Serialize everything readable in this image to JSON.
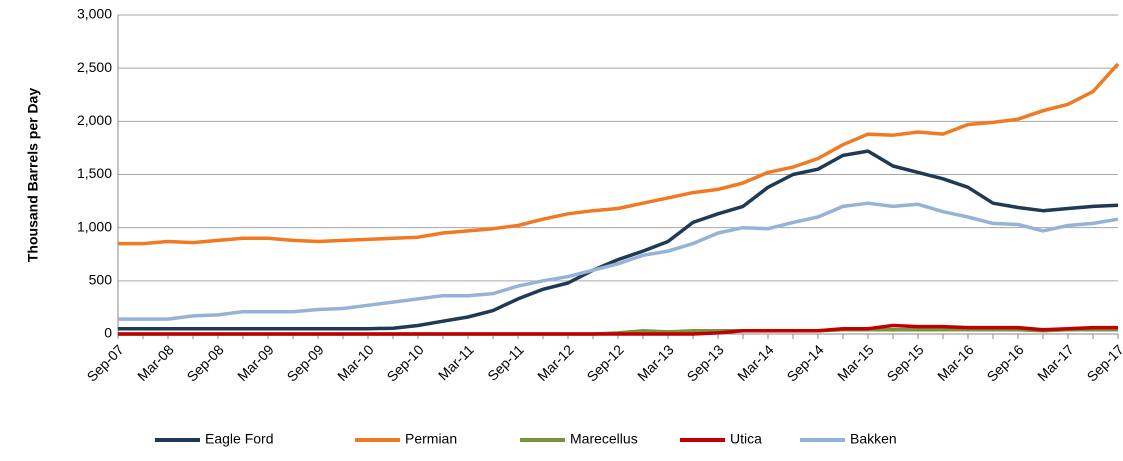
{
  "chart_data": {
    "type": "line",
    "y_label": "Thousand Barrels per Day",
    "categories": [
      "Sep-07",
      null,
      "Mar-08",
      null,
      "Sep-08",
      null,
      "Mar-09",
      null,
      "Sep-09",
      null,
      "Mar-10",
      null,
      "Sep-10",
      null,
      "Mar-11",
      null,
      "Sep-11",
      null,
      "Mar-12",
      null,
      "Sep-12",
      null,
      "Mar-13",
      null,
      "Sep-13",
      null,
      "Mar-14",
      null,
      "Sep-14",
      null,
      "Mar-15",
      null,
      "Sep-15",
      null,
      "Mar-16",
      null,
      "Sep-16",
      null,
      "Mar-17",
      null,
      "Sep-17"
    ],
    "series": [
      {
        "name": "Eagle Ford",
        "color": "#1f3a54",
        "values": [
          50,
          50,
          50,
          50,
          50,
          50,
          50,
          50,
          50,
          50,
          50,
          55,
          80,
          120,
          160,
          220,
          330,
          420,
          480,
          600,
          700,
          780,
          870,
          1050,
          1130,
          1200,
          1380,
          1500,
          1550,
          1680,
          1720,
          1580,
          1520,
          1460,
          1380,
          1230,
          1190,
          1160,
          1180,
          1200,
          1210
        ]
      },
      {
        "name": "Permian",
        "color": "#f07a22",
        "values": [
          850,
          850,
          870,
          860,
          880,
          900,
          900,
          880,
          870,
          880,
          890,
          900,
          910,
          950,
          970,
          990,
          1020,
          1080,
          1130,
          1160,
          1180,
          1230,
          1280,
          1330,
          1360,
          1420,
          1520,
          1570,
          1650,
          1780,
          1880,
          1870,
          1900,
          1880,
          1970,
          1990,
          2020,
          2100,
          2160,
          2280,
          2540
        ]
      },
      {
        "name": "Marecellus",
        "color": "#77933c",
        "values": [
          0,
          0,
          0,
          0,
          0,
          0,
          0,
          0,
          0,
          0,
          0,
          0,
          0,
          0,
          0,
          0,
          0,
          0,
          0,
          0,
          10,
          30,
          20,
          30,
          30,
          30,
          30,
          30,
          30,
          40,
          40,
          40,
          40,
          40,
          40,
          40,
          40,
          30,
          40,
          40,
          40
        ]
      },
      {
        "name": "Utica",
        "color": "#c00000",
        "values": [
          0,
          0,
          0,
          0,
          0,
          0,
          0,
          0,
          0,
          0,
          0,
          0,
          0,
          0,
          0,
          0,
          0,
          0,
          0,
          0,
          0,
          0,
          0,
          0,
          10,
          30,
          30,
          30,
          30,
          50,
          50,
          80,
          70,
          70,
          60,
          60,
          60,
          40,
          50,
          60,
          60
        ]
      },
      {
        "name": "Bakken",
        "color": "#95b3d7",
        "values": [
          140,
          140,
          140,
          170,
          180,
          210,
          210,
          210,
          230,
          240,
          270,
          300,
          330,
          360,
          360,
          380,
          450,
          500,
          540,
          600,
          660,
          740,
          780,
          850,
          950,
          1000,
          990,
          1050,
          1100,
          1200,
          1230,
          1200,
          1220,
          1150,
          1100,
          1040,
          1030,
          970,
          1020,
          1040,
          1080
        ]
      }
    ],
    "ylim": [
      0,
      3000
    ],
    "yticks": [
      0,
      500,
      {
        "value": 1000,
        "label": "1,000"
      },
      {
        "value": 1500,
        "label": "1,500"
      },
      {
        "value": 2000,
        "label": "2,000"
      },
      {
        "value": 2500,
        "label": "2,500"
      },
      {
        "value": 3000,
        "label": "3,000"
      }
    ],
    "grid": true,
    "legend": "bottom"
  }
}
